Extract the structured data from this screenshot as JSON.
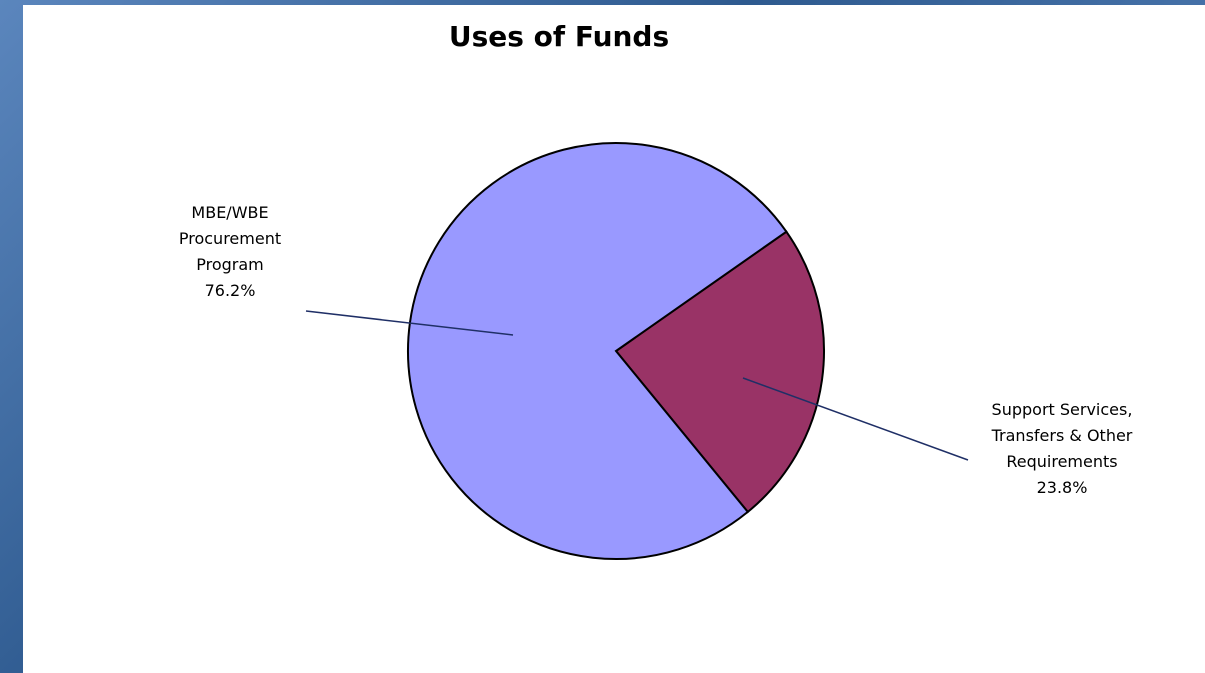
{
  "chart_data": {
    "type": "pie",
    "title": "Uses of Funds",
    "slices": [
      {
        "lines": [
          "Support Services,",
          "Transfers & Other",
          "Requirements"
        ],
        "pct_label": "23.8%",
        "value": 23.8,
        "color": "#993366"
      },
      {
        "lines": [
          "MBE/WBE",
          "Procurement",
          "Program"
        ],
        "pct_label": "76.2%",
        "value": 76.2,
        "color": "#9999ff"
      }
    ]
  },
  "colors": {
    "background": "#3f6a9e",
    "panel": "#ffffff",
    "leader_line": "#1f2f66",
    "outline": "#000000"
  }
}
